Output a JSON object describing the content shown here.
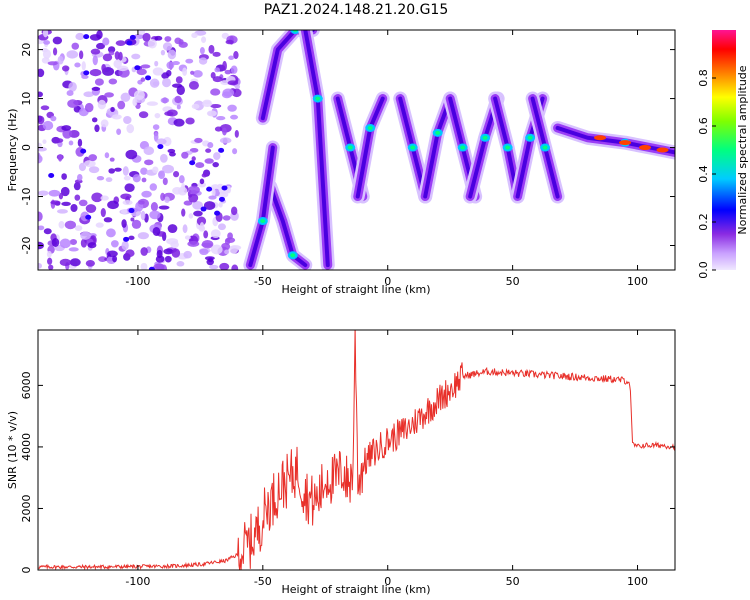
{
  "page_title": "PAZ1.2024.148.21.20.G15",
  "chart_data": [
    {
      "type": "heatmap",
      "xlabel": "Height of straight line (km)",
      "ylabel": "Frequency (Hz)",
      "xlim": [
        -140,
        115
      ],
      "ylim": [
        -25,
        24
      ],
      "xticks": [
        -100,
        -50,
        0,
        50,
        100
      ],
      "yticks": [
        -20,
        -10,
        0,
        10,
        20
      ],
      "colorbar": {
        "label": "Normalized spectral amplitude",
        "range": [
          0.0,
          1.0
        ],
        "ticks": [
          0.0,
          0.2,
          0.4,
          0.6,
          0.8
        ],
        "colormap": [
          "#f0e8ff",
          "#c9a0ff",
          "#8a2be2",
          "#0000ff",
          "#00ccff",
          "#00ff80",
          "#80ff00",
          "#ffff00",
          "#ff8000",
          "#ff0000",
          "#ff1493"
        ]
      },
      "ridges": [
        {
          "x": [
            -50,
            -44,
            -37,
            -30
          ],
          "f": [
            6,
            20,
            24,
            24
          ]
        },
        {
          "x": [
            -47,
            -42,
            -38,
            -33
          ],
          "f": [
            -8,
            -15,
            -22,
            -24
          ]
        },
        {
          "x": [
            -55,
            -50,
            -46
          ],
          "f": [
            -24,
            -15,
            0
          ]
        },
        {
          "x": [
            -33,
            -28,
            -24
          ],
          "f": [
            24,
            10,
            -24
          ]
        },
        {
          "x": [
            -20,
            -15,
            -10
          ],
          "f": [
            10,
            0,
            -10
          ]
        },
        {
          "x": [
            -12,
            -7,
            -2
          ],
          "f": [
            -10,
            4,
            10
          ]
        },
        {
          "x": [
            5,
            10,
            15
          ],
          "f": [
            10,
            0,
            -10
          ]
        },
        {
          "x": [
            15,
            20,
            25
          ],
          "f": [
            -10,
            3,
            10
          ]
        },
        {
          "x": [
            25,
            30,
            35
          ],
          "f": [
            10,
            0,
            -10
          ]
        },
        {
          "x": [
            33,
            39,
            44
          ],
          "f": [
            -10,
            2,
            10
          ]
        },
        {
          "x": [
            43,
            48,
            52
          ],
          "f": [
            10,
            0,
            -10
          ]
        },
        {
          "x": [
            52,
            57,
            62
          ],
          "f": [
            -10,
            2,
            10
          ]
        },
        {
          "x": [
            58,
            63,
            68
          ],
          "f": [
            10,
            0,
            -10
          ]
        },
        {
          "x": [
            68,
            80,
            95,
            105,
            115
          ],
          "f": [
            4,
            2,
            1,
            0,
            -1
          ]
        }
      ]
    },
    {
      "type": "line",
      "xlabel": "Height of straight line (km)",
      "ylabel": "SNR (10 * v/v)",
      "xlim": [
        -140,
        115
      ],
      "ylim": [
        0,
        7800
      ],
      "xticks": [
        -100,
        -50,
        0,
        50,
        100
      ],
      "yticks": [
        0,
        2000,
        4000,
        6000
      ],
      "series": [
        {
          "color": "#e8302a",
          "x": [
            -140,
            -120,
            -100,
            -85,
            -75,
            -65,
            -60,
            -55,
            -52,
            -50,
            -48,
            -46,
            -44,
            -42,
            -40,
            -38,
            -36,
            -34,
            -32,
            -30,
            -28,
            -26,
            -24,
            -22,
            -20,
            -18,
            -16,
            -14,
            -13,
            -12,
            -11,
            -10,
            -8,
            -6,
            -4,
            -2,
            0,
            2,
            4,
            6,
            8,
            10,
            14,
            18,
            22,
            26,
            30,
            40,
            50,
            60,
            70,
            80,
            90,
            96,
            97,
            98,
            100,
            102,
            106,
            110,
            115
          ],
          "y": [
            100,
            100,
            110,
            130,
            180,
            300,
            500,
            900,
            1300,
            1700,
            2100,
            2300,
            2600,
            2800,
            2900,
            3100,
            3300,
            2700,
            2400,
            2200,
            2300,
            2700,
            3100,
            2900,
            3000,
            3300,
            2800,
            3100,
            7700,
            3100,
            3000,
            3400,
            3600,
            3800,
            3900,
            4100,
            4200,
            4300,
            4400,
            4500,
            4600,
            4750,
            5050,
            5350,
            5650,
            5950,
            6300,
            6450,
            6400,
            6350,
            6300,
            6250,
            6200,
            6150,
            6050,
            4100,
            4000,
            4050,
            4050,
            4050,
            4000
          ]
        }
      ]
    }
  ]
}
